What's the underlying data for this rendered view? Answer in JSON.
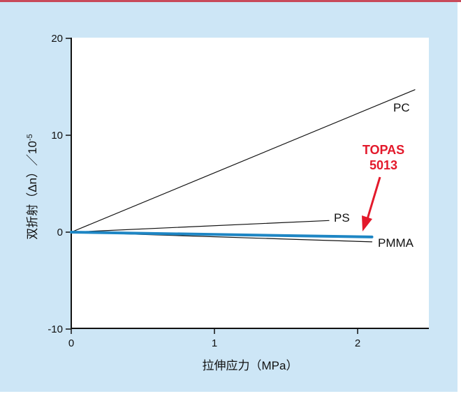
{
  "chart_data": {
    "type": "line",
    "xlabel": "拉伸应力（MPa）",
    "ylabel": "双折射（Δn）／10",
    "ylabel_exponent": "-5",
    "xlim": [
      0,
      2.4
    ],
    "ylim": [
      -10,
      20
    ],
    "x_ticks": [
      "0",
      "1",
      "2"
    ],
    "y_ticks": [
      "20",
      "10",
      "0",
      "-10"
    ],
    "series": [
      {
        "name": "PC",
        "x": [
          0,
          2.4
        ],
        "y": [
          0,
          14.7
        ],
        "color": "#111111",
        "width": 1.2
      },
      {
        "name": "PS",
        "x": [
          0,
          1.8
        ],
        "y": [
          0,
          1.2
        ],
        "color": "#111111",
        "width": 1.2
      },
      {
        "name": "PMMA",
        "x": [
          0,
          2.1
        ],
        "y": [
          0,
          -1.0
        ],
        "color": "#111111",
        "width": 1.2
      },
      {
        "name": "TOPAS 5013",
        "x": [
          0,
          2.1
        ],
        "y": [
          0,
          -0.5
        ],
        "color": "#1e86c4",
        "width": 4
      }
    ],
    "annotations": {
      "pc": "PC",
      "ps": "PS",
      "pmma": "PMMA",
      "topas_line1": "TOPAS",
      "topas_line2": "5013",
      "topas_color": "#e3192b"
    }
  }
}
